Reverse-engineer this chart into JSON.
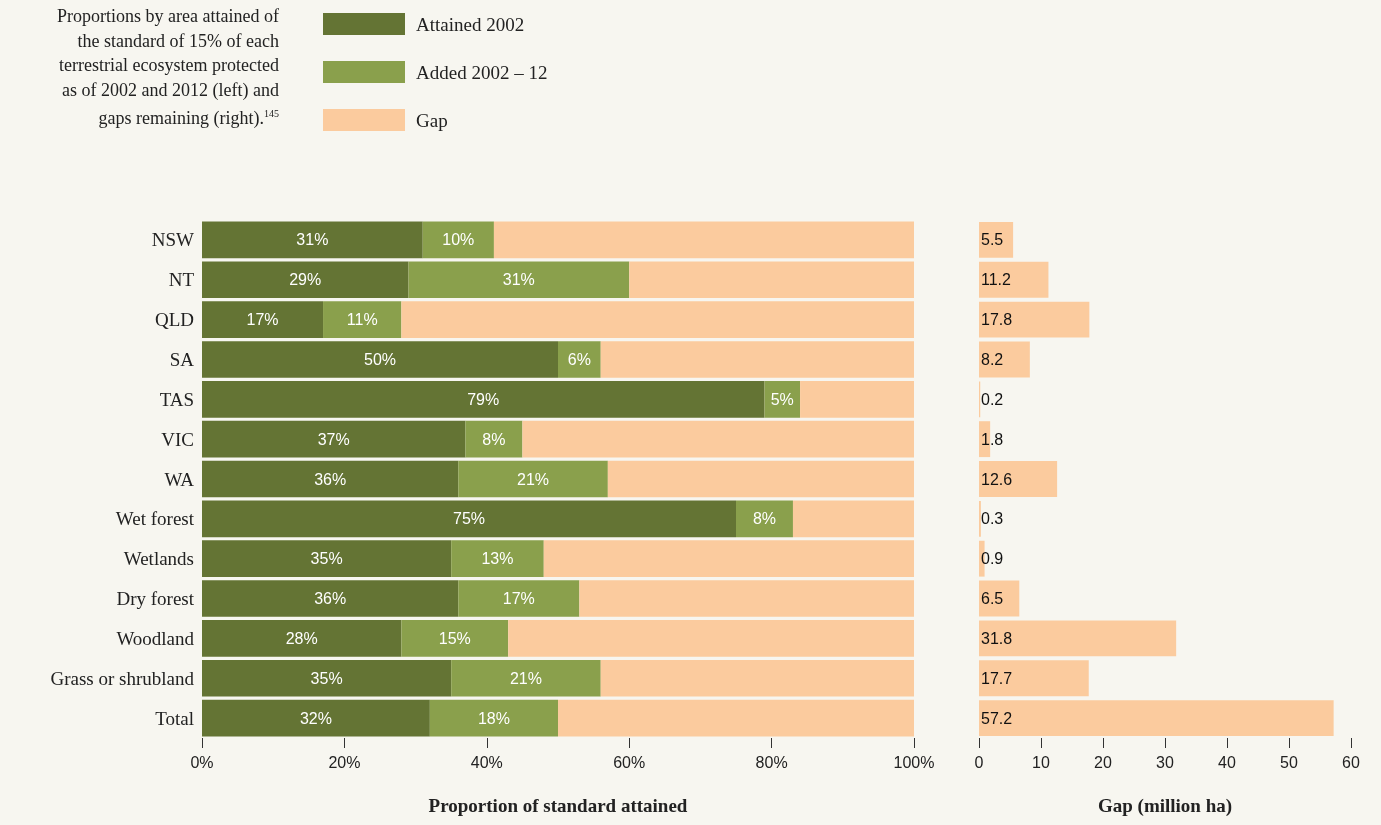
{
  "chart_data": [
    {
      "type": "bar",
      "title": "Proportions by area attained of the standard of 15% of each terrestrial ecosystem protected as of 2002 and 2012 (left) and gaps remaining (right).$^{145}$",
      "xlabel": "Proportion of standard attained",
      "orientation": "horizontal",
      "stacked": true,
      "legend": "top",
      "categories": [
        "NSW",
        "NT",
        "QLD",
        "SA",
        "TAS",
        "VIC",
        "WA",
        "Wet forest",
        "Wetlands",
        "Dry forest",
        "Woodland",
        "Grass or shrubland",
        "Total"
      ],
      "xlim": [
        0,
        100
      ],
      "xticks": [
        {
          "value": 0,
          "label": "0%"
        },
        {
          "value": 20,
          "label": "20%"
        },
        {
          "value": 40,
          "label": "40%"
        },
        {
          "value": 60,
          "label": "60%"
        },
        {
          "value": 80,
          "label": "80%"
        },
        {
          "value": 100,
          "label": "100%"
        }
      ],
      "series": [
        {
          "name": "Attained 2002",
          "color": "#647434",
          "values": [
            31,
            29,
            17,
            50,
            79,
            37,
            36,
            75,
            35,
            36,
            28,
            35,
            32
          ],
          "value_labels": [
            "31%",
            "29%",
            "17%",
            "50%",
            "79%",
            "37%",
            "36%",
            "75%",
            "35%",
            "36%",
            "28%",
            "35%",
            "32%"
          ]
        },
        {
          "name": "Added 2002 – 12",
          "color": "#8aa04c",
          "values": [
            10,
            31,
            11,
            6,
            5,
            8,
            21,
            8,
            13,
            17,
            15,
            21,
            18
          ],
          "value_labels": [
            "10%",
            "31%",
            "11%",
            "6%",
            "5%",
            "8%",
            "21%",
            "8%",
            "13%",
            "17%",
            "15%",
            "21%",
            "18%"
          ]
        },
        {
          "name": "Gap",
          "color": "#fbcb9e",
          "values": [
            59,
            40,
            72,
            44,
            16,
            55,
            43,
            17,
            52,
            47,
            57,
            44,
            50
          ]
        }
      ]
    },
    {
      "type": "bar",
      "xlabel": "Gap (million ha)",
      "orientation": "horizontal",
      "tick_labels": "x",
      "data_labels": true,
      "categories": [
        null,
        null,
        null,
        null,
        null,
        null,
        null,
        null,
        null,
        null,
        null,
        null,
        null
      ],
      "xlim": [
        0,
        60
      ],
      "xticks": [
        0,
        10,
        20,
        30,
        40,
        50,
        60
      ],
      "values": [
        5.5,
        11.2,
        17.8,
        8.2,
        0.2,
        1.8,
        12.6,
        0.3,
        0.9,
        6.5,
        31.8,
        17.7,
        57.2
      ],
      "color": "#fbcb9e"
    }
  ]
}
